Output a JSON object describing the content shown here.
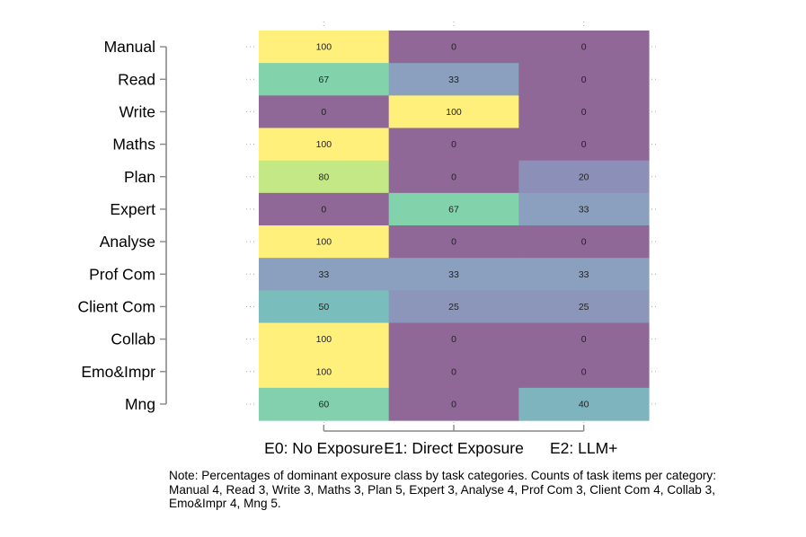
{
  "chart_data": {
    "type": "heatmap",
    "title": "",
    "rows": [
      "Manual",
      "Read",
      "Write",
      "Maths",
      "Plan",
      "Expert",
      "Analyse",
      "Prof Com",
      "Client Com",
      "Collab",
      "Emo&Impr",
      "Mng"
    ],
    "columns": [
      "E0: No Exposure",
      "E1: Direct Exposure",
      "E2: LLM+"
    ],
    "values": [
      [
        100,
        0,
        0
      ],
      [
        67,
        33,
        0
      ],
      [
        0,
        100,
        0
      ],
      [
        100,
        0,
        0
      ],
      [
        80,
        0,
        20
      ],
      [
        0,
        67,
        33
      ],
      [
        100,
        0,
        0
      ],
      [
        33,
        33,
        33
      ],
      [
        50,
        25,
        25
      ],
      [
        100,
        0,
        0
      ],
      [
        100,
        0,
        0
      ],
      [
        60,
        0,
        40
      ]
    ],
    "value_range": [
      0,
      100
    ],
    "colormap": "viridis"
  },
  "note": "Note: Percentages of dominant exposure class by task categories. Counts of task items per category: Manual 4, Read 3, Write 3, Maths 3, Plan 5, Expert 3, Analyse 4, Prof Com 3, Client Com 4, Collab 3, Emo&Impr 4, Mng 5."
}
